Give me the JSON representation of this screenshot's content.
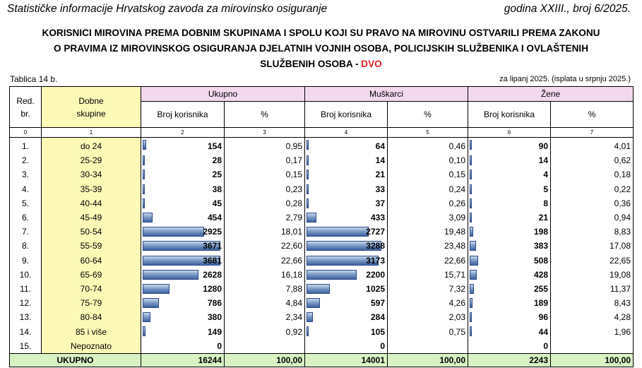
{
  "header": {
    "left": "Statističke informacije Hrvatskog zavoda za mirovinsko osiguranje",
    "right": "godina XXIII., broj 6/2025."
  },
  "title": {
    "line1": "KORISNICI MIROVINA PREMA DOBNIM SKUPINAMA I SPOLU KOJI SU PRAVO NA MIROVINU OSTVARILI PREMA ZAKONU",
    "line2": "O PRAVIMA IZ MIROVINSKOG OSIGURANJA DJELATNIH VOJNIH OSOBA, POLICIJSKIH SLUŽBENIKA I OVLAŠTENIH",
    "line3": "SLUŽBENIH OSOBA - ",
    "accent": "DVO",
    "accent_color": "#e0211b"
  },
  "table_label": "Tablica 14 b.",
  "period": "za lipanj 2025. (isplata u srpnju 2025.)",
  "columns": {
    "red_br": "Red. br.",
    "dobne": "Dobne skupine",
    "ukupno": "Ukupno",
    "muskarci": "Muškarci",
    "zene": "Žene",
    "broj": "Broj korisnika",
    "pct": "%",
    "index": [
      "0",
      "1",
      "2",
      "3",
      "4",
      "5",
      "6",
      "7"
    ]
  },
  "rows": [
    {
      "rb": "1.",
      "grp": "do 24",
      "u": "154",
      "up": "0,95",
      "m": "64",
      "mp": "0,46",
      "z": "90",
      "zp": "4,01"
    },
    {
      "rb": "2.",
      "grp": "25-29",
      "u": "28",
      "up": "0,17",
      "m": "14",
      "mp": "0,10",
      "z": "14",
      "zp": "0,62"
    },
    {
      "rb": "3.",
      "grp": "30-34",
      "u": "25",
      "up": "0,15",
      "m": "21",
      "mp": "0,15",
      "z": "4",
      "zp": "0,18"
    },
    {
      "rb": "4.",
      "grp": "35-39",
      "u": "38",
      "up": "0,23",
      "m": "33",
      "mp": "0,24",
      "z": "5",
      "zp": "0,22"
    },
    {
      "rb": "5.",
      "grp": "40-44",
      "u": "45",
      "up": "0,28",
      "m": "37",
      "mp": "0,26",
      "z": "8",
      "zp": "0,36"
    },
    {
      "rb": "6.",
      "grp": "45-49",
      "u": "454",
      "up": "2,79",
      "m": "433",
      "mp": "3,09",
      "z": "21",
      "zp": "0,94"
    },
    {
      "rb": "7.",
      "grp": "50-54",
      "u": "2925",
      "up": "18,01",
      "m": "2727",
      "mp": "19,48",
      "z": "198",
      "zp": "8,83"
    },
    {
      "rb": "8.",
      "grp": "55-59",
      "u": "3671",
      "up": "22,60",
      "m": "3288",
      "mp": "23,48",
      "z": "383",
      "zp": "17,08"
    },
    {
      "rb": "9.",
      "grp": "60-64",
      "u": "3681",
      "up": "22,66",
      "m": "3173",
      "mp": "22,66",
      "z": "508",
      "zp": "22,65"
    },
    {
      "rb": "10.",
      "grp": "65-69",
      "u": "2628",
      "up": "16,18",
      "m": "2200",
      "mp": "15,71",
      "z": "428",
      "zp": "19,08"
    },
    {
      "rb": "11.",
      "grp": "70-74",
      "u": "1280",
      "up": "7,88",
      "m": "1025",
      "mp": "7,32",
      "z": "255",
      "zp": "11,37"
    },
    {
      "rb": "12.",
      "grp": "75-79",
      "u": "786",
      "up": "4,84",
      "m": "597",
      "mp": "4,26",
      "z": "189",
      "zp": "8,43"
    },
    {
      "rb": "13.",
      "grp": "80-84",
      "u": "380",
      "up": "2,34",
      "m": "284",
      "mp": "2,03",
      "z": "96",
      "zp": "4,28"
    },
    {
      "rb": "14.",
      "grp": "85 i više",
      "u": "149",
      "up": "0,92",
      "m": "105",
      "mp": "0,75",
      "z": "44",
      "zp": "1,96"
    },
    {
      "rb": "15.",
      "grp": "Nepoznato",
      "u": "0",
      "up": "",
      "m": "0",
      "mp": "",
      "z": "0",
      "zp": ""
    }
  ],
  "total": {
    "label": "UKUPNO",
    "u": "16244",
    "up": "100,00",
    "m": "14001",
    "mp": "100,00",
    "z": "2243",
    "zp": "100,00"
  },
  "colors": {
    "group_header": "#f3d9ee",
    "age_column": "#fdfab8",
    "total_row": "#d8f2c4",
    "bar": "#4a6fae"
  }
}
